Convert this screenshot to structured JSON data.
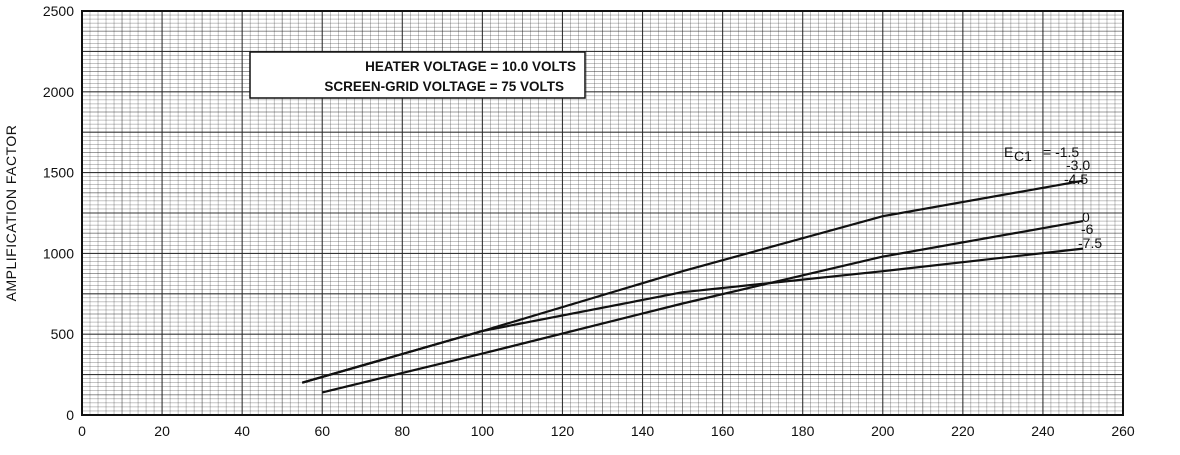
{
  "chart_data": {
    "type": "line",
    "title": "",
    "xlabel": "",
    "ylabel": "AMPLIFICATION FACTOR",
    "xlim": [
      0,
      260
    ],
    "ylim": [
      0,
      2500
    ],
    "x_ticks": [
      "0",
      "20",
      "40",
      "60",
      "80",
      "100",
      "120",
      "140",
      "160",
      "180",
      "200",
      "220",
      "240",
      "260"
    ],
    "y_ticks": [
      "0",
      "500",
      "1000",
      "1500",
      "2000",
      "2500"
    ],
    "grid": true,
    "annotations": {
      "line1": "HEATER VOLTAGE = 10.0 VOLTS",
      "line2": "SCREEN-GRID VOLTAGE = 75 VOLTS"
    },
    "curve_label_prefix": "E",
    "curve_label_subscript": "C1",
    "series": [
      {
        "name": "-1.5",
        "label": "= -1.5",
        "x": [
          55,
          100,
          150,
          200,
          250
        ],
        "y": [
          200,
          520,
          890,
          1230,
          1450
        ]
      },
      {
        "name": "-3.0",
        "label": "-3.0",
        "x": [
          55,
          100,
          150,
          200,
          250
        ],
        "y": [
          200,
          520,
          890,
          1230,
          1450
        ]
      },
      {
        "name": "-4.5",
        "label": "-4.5",
        "x": [
          55,
          100,
          150,
          200,
          250
        ],
        "y": [
          200,
          520,
          890,
          1230,
          1450
        ]
      },
      {
        "name": "0",
        "label": "0",
        "x": [
          60,
          100,
          150,
          200,
          250
        ],
        "y": [
          140,
          380,
          690,
          980,
          1200
        ]
      },
      {
        "name": "-6",
        "label": "-6",
        "x": [
          60,
          100,
          150,
          200,
          250
        ],
        "y": [
          140,
          380,
          690,
          980,
          1200
        ]
      },
      {
        "name": "-7.5",
        "label": "-7.5",
        "x": [
          55,
          100,
          150,
          200,
          250
        ],
        "y": [
          200,
          520,
          760,
          890,
          1030
        ]
      }
    ]
  }
}
